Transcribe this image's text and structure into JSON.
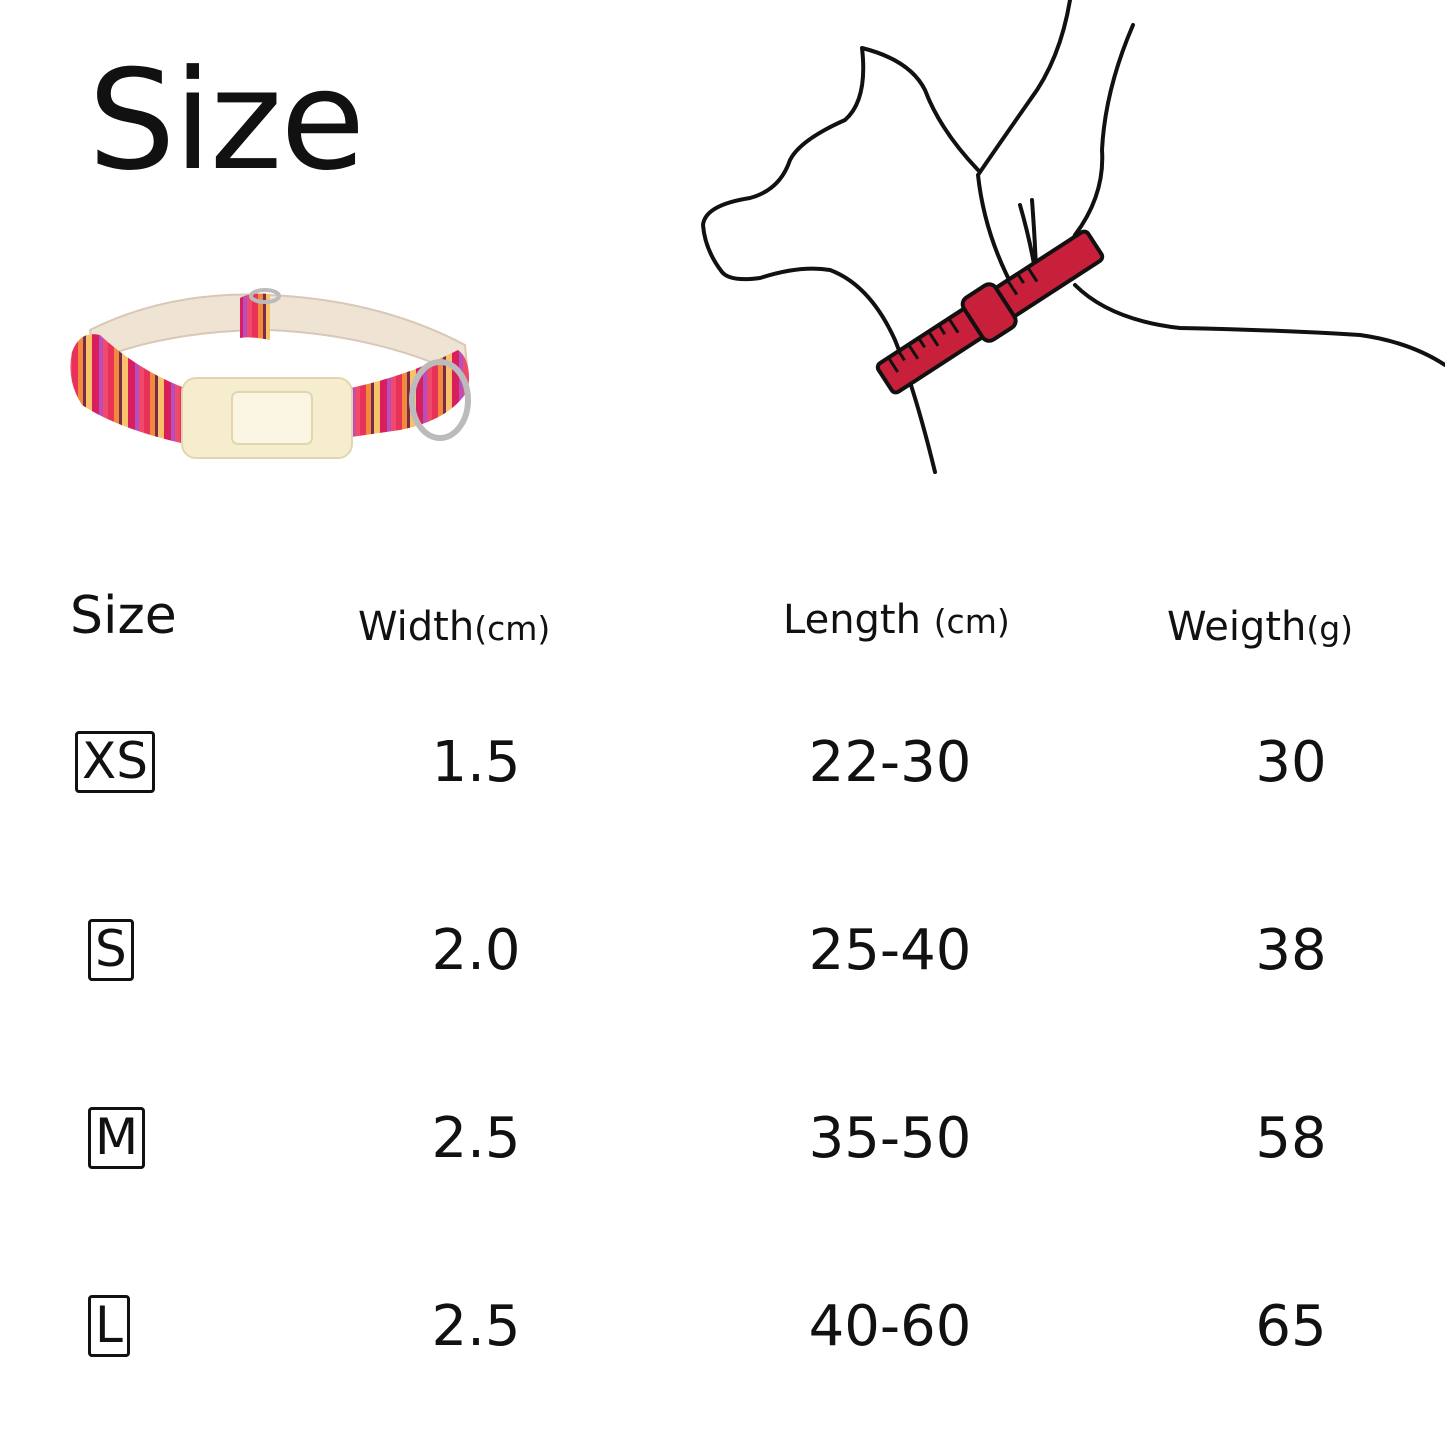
{
  "title": "Size",
  "colors": {
    "ruler": "#c8203a",
    "collar_stripes": [
      "#e8325a",
      "#f28a3c",
      "#7a2a4a",
      "#f7c26a",
      "#d81e5b",
      "#b64ec0"
    ],
    "buckle": "#f6edcf"
  },
  "table": {
    "headers": [
      {
        "label": "Size",
        "unit": ""
      },
      {
        "label": "Width",
        "unit": "(cm)"
      },
      {
        "label": "Length",
        "unit": "(cm)"
      },
      {
        "label": "Weigth",
        "unit": "(g)"
      }
    ],
    "rows": [
      {
        "size": "XS",
        "width": "1.5",
        "length": "22-30",
        "weight": "30"
      },
      {
        "size": "S",
        "width": "2.0",
        "length": "25-40",
        "weight": "38"
      },
      {
        "size": "M",
        "width": "2.5",
        "length": "35-50",
        "weight": "58"
      },
      {
        "size": "L",
        "width": "2.5",
        "length": "40-60",
        "weight": "65"
      }
    ]
  }
}
